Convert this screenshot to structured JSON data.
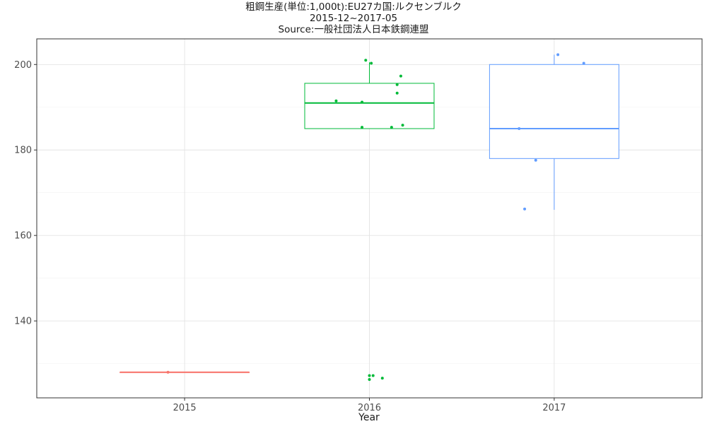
{
  "chart_data": {
    "type": "boxplot",
    "title": "粗鋼生産(単位:1,000t):EU27カ国:ルクセンブルク",
    "subtitle": "2015-12~2017-05",
    "source": "Source:一般社団法人日本鉄鋼連盟",
    "xlabel": "Year",
    "ylabel": "",
    "categories": [
      "2015",
      "2016",
      "2017"
    ],
    "ylim": [
      122,
      206
    ],
    "yticks": [
      140,
      160,
      180,
      200
    ],
    "grid": true,
    "colors": {
      "2015": "#F8766D",
      "2016": "#00BA38",
      "2017": "#619CFF"
    },
    "boxes": [
      {
        "category": "2015",
        "q1": 128.0,
        "median": 128.0,
        "q3": 128.0,
        "whisker_low": 128.0,
        "whisker_high": 128.0
      },
      {
        "category": "2016",
        "q1": 185.0,
        "median": 191.0,
        "q3": 195.6,
        "whisker_low": 185.0,
        "whisker_high": 200.5
      },
      {
        "category": "2017",
        "q1": 178.0,
        "median": 185.0,
        "q3": 200.0,
        "whisker_low": 166.0,
        "whisker_high": 202.3
      }
    ],
    "points": [
      {
        "category": "2015",
        "offset": -0.09,
        "value": 128.0
      },
      {
        "category": "2016",
        "offset": -0.18,
        "value": 191.5
      },
      {
        "category": "2016",
        "offset": -0.02,
        "value": 201.0
      },
      {
        "category": "2016",
        "offset": 0.01,
        "value": 200.3
      },
      {
        "category": "2016",
        "offset": -0.04,
        "value": 191.2
      },
      {
        "category": "2016",
        "offset": 0.17,
        "value": 197.3
      },
      {
        "category": "2016",
        "offset": 0.15,
        "value": 195.3
      },
      {
        "category": "2016",
        "offset": 0.15,
        "value": 193.3
      },
      {
        "category": "2016",
        "offset": -0.04,
        "value": 185.3
      },
      {
        "category": "2016",
        "offset": 0.12,
        "value": 185.3
      },
      {
        "category": "2016",
        "offset": 0.18,
        "value": 185.8
      },
      {
        "category": "2016",
        "offset": 0.0,
        "value": 127.2
      },
      {
        "category": "2016",
        "offset": 0.02,
        "value": 127.2
      },
      {
        "category": "2016",
        "offset": 0.0,
        "value": 126.3
      },
      {
        "category": "2016",
        "offset": 0.07,
        "value": 126.6
      },
      {
        "category": "2017",
        "offset": -0.19,
        "value": 185.0
      },
      {
        "category": "2017",
        "offset": 0.02,
        "value": 202.3
      },
      {
        "category": "2017",
        "offset": 0.16,
        "value": 200.3
      },
      {
        "category": "2017",
        "offset": -0.1,
        "value": 177.6
      },
      {
        "category": "2017",
        "offset": -0.16,
        "value": 166.2
      }
    ]
  }
}
